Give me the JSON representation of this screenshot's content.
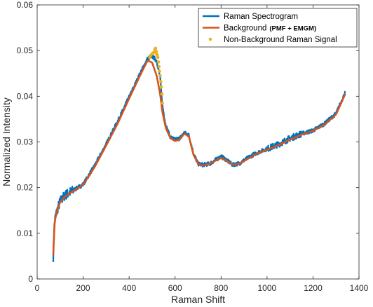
{
  "chart_data": {
    "type": "line",
    "xlabel": "Raman Shift",
    "ylabel": "Normalized Intensity",
    "xlim": [
      0,
      1400
    ],
    "ylim": [
      0,
      0.06
    ],
    "xticks": [
      "0",
      "200",
      "400",
      "600",
      "800",
      "1000",
      "1200",
      "1400"
    ],
    "yticks": [
      "0",
      "0.01",
      "0.02",
      "0.03",
      "0.04",
      "0.05",
      "0.06"
    ],
    "grid": false,
    "legend_position": "top-right",
    "series": [
      {
        "name": "Raman Spectrogram",
        "color": "#0072BD",
        "style": "noisy-line",
        "x": [
          70,
          75,
          80,
          90,
          100,
          120,
          150,
          200,
          250,
          300,
          350,
          400,
          450,
          480,
          500,
          520,
          535,
          545,
          560,
          580,
          600,
          620,
          640,
          660,
          680,
          700,
          720,
          750,
          780,
          800,
          820,
          850,
          880,
          900,
          950,
          1000,
          1050,
          1100,
          1150,
          1200,
          1250,
          1300,
          1340
        ],
        "y": [
          0.0048,
          0.012,
          0.0138,
          0.0155,
          0.017,
          0.0183,
          0.0192,
          0.0207,
          0.0248,
          0.0295,
          0.0345,
          0.0398,
          0.0452,
          0.0482,
          0.0488,
          0.0478,
          0.044,
          0.038,
          0.0335,
          0.031,
          0.0305,
          0.0308,
          0.032,
          0.0315,
          0.0275,
          0.0252,
          0.025,
          0.0252,
          0.0262,
          0.0268,
          0.0262,
          0.025,
          0.0253,
          0.026,
          0.0275,
          0.0285,
          0.0295,
          0.0308,
          0.0318,
          0.0325,
          0.034,
          0.0362,
          0.0408
        ]
      },
      {
        "name": "Background",
        "name_note": "(PMF + EMGM)",
        "color": "#D95319",
        "style": "line",
        "x": [
          70,
          75,
          80,
          90,
          100,
          120,
          150,
          200,
          250,
          300,
          350,
          400,
          450,
          480,
          500,
          520,
          535,
          545,
          560,
          580,
          600,
          620,
          640,
          660,
          680,
          700,
          720,
          750,
          780,
          800,
          820,
          850,
          880,
          900,
          950,
          1000,
          1050,
          1100,
          1150,
          1200,
          1250,
          1300,
          1340
        ],
        "y": [
          0.0052,
          0.0118,
          0.0135,
          0.0155,
          0.0168,
          0.018,
          0.019,
          0.0206,
          0.0245,
          0.0292,
          0.034,
          0.0395,
          0.0448,
          0.0478,
          0.0474,
          0.0445,
          0.0405,
          0.0365,
          0.033,
          0.0308,
          0.0302,
          0.0305,
          0.0318,
          0.0312,
          0.0272,
          0.0252,
          0.0248,
          0.0252,
          0.026,
          0.0265,
          0.026,
          0.025,
          0.0252,
          0.0258,
          0.0273,
          0.0283,
          0.0293,
          0.0305,
          0.0316,
          0.0324,
          0.0338,
          0.036,
          0.0405
        ]
      },
      {
        "name": "Non-Background Raman Signal",
        "color": "#EDB120",
        "style": "markers",
        "x": [
          490,
          495,
          500,
          505,
          510,
          512,
          515,
          518,
          520,
          522,
          525,
          528,
          530,
          532,
          535,
          538,
          540,
          543,
          545
        ],
        "y": [
          0.0485,
          0.049,
          0.0493,
          0.0495,
          0.0497,
          0.0502,
          0.0505,
          0.0498,
          0.0492,
          0.049,
          0.0485,
          0.0475,
          0.0465,
          0.0455,
          0.0445,
          0.0432,
          0.042,
          0.0405,
          0.0385
        ]
      }
    ]
  }
}
